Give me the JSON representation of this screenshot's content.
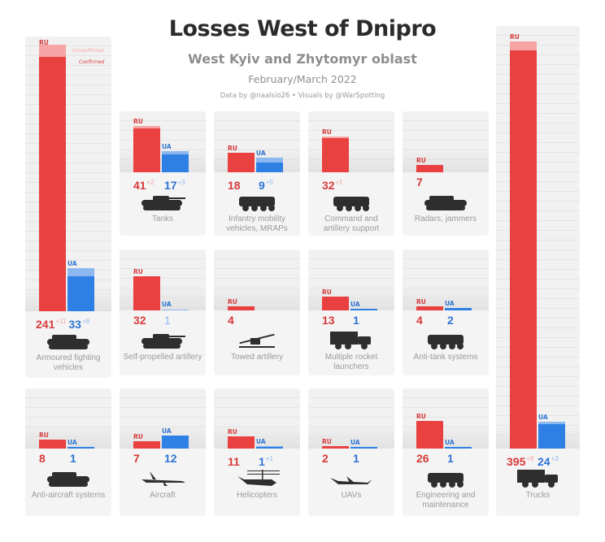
{
  "header": {
    "title": "Losses West of Dnipro",
    "subtitle": "West Kyiv and Zhytomyr oblast",
    "date": "February/March 2022",
    "credit": "Data by @naalsio26 • Visuals by @WarSpotting"
  },
  "colors": {
    "ru": "#e8413f",
    "ru_unconfirmed": "#f6a5a4",
    "ru_text": "#d63a3c",
    "ua": "#2f80e4",
    "ua_unconfirmed": "#8cb7ef",
    "ua_text": "#2f74d4"
  },
  "legend": {
    "unconfirmed": "Unconfirmed",
    "confirmed": "Confirmed"
  },
  "chart_data": {
    "type": "bar",
    "series_tags": {
      "ru": "RU",
      "ua": "UA"
    },
    "categories": [
      {
        "label": "Armoured fighting vehicles",
        "icon": "ifv-icon",
        "ru": {
          "confirmed": 241,
          "unconfirmed": 11,
          "text": "241",
          "plus": "+11"
        },
        "ua": {
          "confirmed": 33,
          "unconfirmed": 8,
          "text": "33",
          "plus": "+8"
        }
      },
      {
        "label": "Tanks",
        "icon": "tank-icon",
        "ru": {
          "confirmed": 41,
          "unconfirmed": 2,
          "text": "41",
          "plus": "+2"
        },
        "ua": {
          "confirmed": 17,
          "unconfirmed": 3,
          "text": "17",
          "plus": "+3"
        }
      },
      {
        "label": "Infantry mobility vehicles, MRAPs",
        "icon": "mrap-icon",
        "ru": {
          "confirmed": 18,
          "unconfirmed": 0,
          "text": "18",
          "plus": ""
        },
        "ua": {
          "confirmed": 9,
          "unconfirmed": 5,
          "text": "9",
          "plus": "+5"
        }
      },
      {
        "label": "Command and artillery support",
        "icon": "apc-icon",
        "ru": {
          "confirmed": 32,
          "unconfirmed": 1,
          "text": "32",
          "plus": "+1"
        },
        "ua": null
      },
      {
        "label": "Radars, jammers",
        "icon": "radar-vehicle-icon",
        "ru": {
          "confirmed": 7,
          "unconfirmed": 0,
          "text": "7",
          "plus": ""
        },
        "ua": null
      },
      {
        "label": "Self-propelled artillery",
        "icon": "spg-icon",
        "ru": {
          "confirmed": 32,
          "unconfirmed": 0,
          "text": "32",
          "plus": ""
        },
        "ua": {
          "confirmed": 0,
          "unconfirmed": 1,
          "text": "1",
          "plus": "",
          "faded": true
        }
      },
      {
        "label": "Towed artillery",
        "icon": "howitzer-icon",
        "ru": {
          "confirmed": 4,
          "unconfirmed": 0,
          "text": "4",
          "plus": ""
        },
        "ua": null
      },
      {
        "label": "Multiple rocket launchers",
        "icon": "mlrs-icon",
        "ru": {
          "confirmed": 13,
          "unconfirmed": 0,
          "text": "13",
          "plus": ""
        },
        "ua": {
          "confirmed": 1,
          "unconfirmed": 0,
          "text": "1",
          "plus": ""
        }
      },
      {
        "label": "Anti-tank systems",
        "icon": "atgm-vehicle-icon",
        "ru": {
          "confirmed": 4,
          "unconfirmed": 0,
          "text": "4",
          "plus": ""
        },
        "ua": {
          "confirmed": 2,
          "unconfirmed": 0,
          "text": "2",
          "plus": ""
        }
      },
      {
        "label": "Anti-aircraft systems",
        "icon": "sam-icon",
        "ru": {
          "confirmed": 8,
          "unconfirmed": 0,
          "text": "8",
          "plus": ""
        },
        "ua": {
          "confirmed": 1,
          "unconfirmed": 0,
          "text": "1",
          "plus": ""
        }
      },
      {
        "label": "Aircraft",
        "icon": "jet-icon",
        "ru": {
          "confirmed": 7,
          "unconfirmed": 0,
          "text": "7",
          "plus": ""
        },
        "ua": {
          "confirmed": 12,
          "unconfirmed": 0,
          "text": "12",
          "plus": ""
        }
      },
      {
        "label": "Helicopters",
        "icon": "helicopter-icon",
        "ru": {
          "confirmed": 11,
          "unconfirmed": 0,
          "text": "11",
          "plus": ""
        },
        "ua": {
          "confirmed": 1,
          "unconfirmed": 1,
          "text": "1",
          "plus": "+1"
        }
      },
      {
        "label": "UAVs",
        "icon": "drone-icon",
        "ru": {
          "confirmed": 2,
          "unconfirmed": 0,
          "text": "2",
          "plus": ""
        },
        "ua": {
          "confirmed": 1,
          "unconfirmed": 0,
          "text": "1",
          "plus": ""
        }
      },
      {
        "label": "Engineering and maintenance",
        "icon": "recovery-vehicle-icon",
        "ru": {
          "confirmed": 26,
          "unconfirmed": 0,
          "text": "26",
          "plus": ""
        },
        "ua": {
          "confirmed": 1,
          "unconfirmed": 0,
          "text": "1",
          "plus": ""
        }
      },
      {
        "label": "Trucks",
        "icon": "truck-icon",
        "ru": {
          "confirmed": 395,
          "unconfirmed": 9,
          "text": "395",
          "plus": "+9"
        },
        "ua": {
          "confirmed": 24,
          "unconfirmed": 3,
          "text": "24",
          "plus": "+3"
        }
      }
    ]
  }
}
